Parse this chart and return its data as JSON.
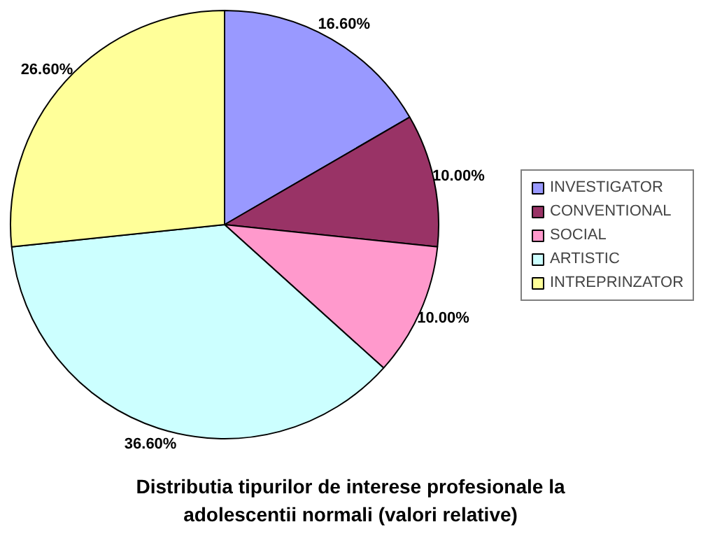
{
  "chart_data": {
    "type": "pie",
    "title": "Distributia tipurilor de interese profesionale la adolescentii normali (valori relative)",
    "categories": [
      "INVESTIGATOR",
      "CONVENTIONAL",
      "SOCIAL",
      "ARTISTIC",
      "INTREPRINZATOR"
    ],
    "values": [
      16.6,
      10.0,
      10.0,
      36.6,
      26.6
    ],
    "value_labels": [
      "16.60%",
      "10.00%",
      "10.00%",
      "36.60%",
      "26.60%"
    ],
    "colors": [
      "#9999ff",
      "#993366",
      "#ff99cc",
      "#ccffff",
      "#ffff99"
    ],
    "legend": "right"
  }
}
